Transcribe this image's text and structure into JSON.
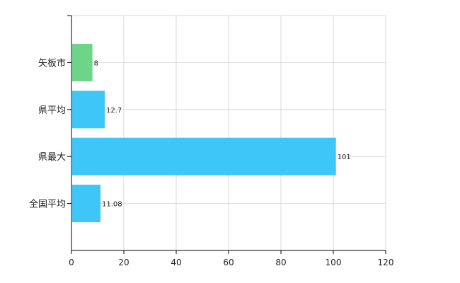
{
  "chart_data": {
    "type": "bar",
    "orientation": "horizontal",
    "categories": [
      "矢板市",
      "県平均",
      "県最大",
      "全国平均"
    ],
    "values": [
      8,
      12.7,
      101,
      11.08
    ],
    "value_labels": [
      "8",
      "12.7",
      "101",
      "11.08"
    ],
    "colors": [
      "#6dd48a",
      "#3ec6f7",
      "#3ec6f7",
      "#3ec6f7"
    ],
    "xlim": [
      0,
      120
    ],
    "x_ticks": [
      0,
      20,
      40,
      60,
      80,
      100,
      120
    ],
    "grid": true,
    "gridline_color": "#d9d9d9",
    "title": "",
    "xlabel": "",
    "ylabel": ""
  }
}
